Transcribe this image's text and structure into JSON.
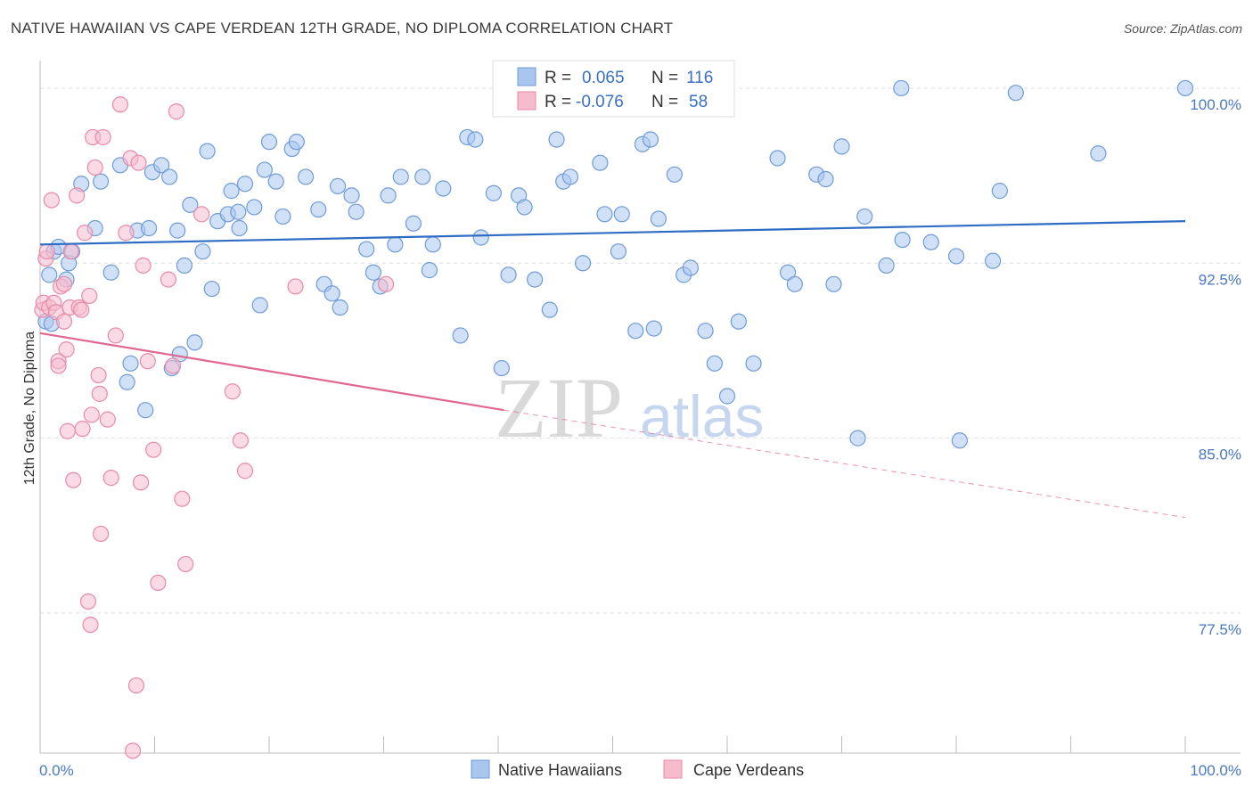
{
  "header": {
    "title": "NATIVE HAWAIIAN VS CAPE VERDEAN 12TH GRADE, NO DIPLOMA CORRELATION CHART",
    "source": "Source: ZipAtlas.com"
  },
  "watermark": {
    "zip": "ZIP",
    "atlas": "atlas"
  },
  "stats_box": {
    "rows": [
      {
        "r_label": "R =",
        "r_value": "0.065",
        "n_label": "N =",
        "n_value": "116"
      },
      {
        "r_label": "R =",
        "r_value": "-0.076",
        "n_label": "N =",
        "n_value": "58"
      }
    ]
  },
  "legend": {
    "items": [
      "Native Hawaiians",
      "Cape Verdeans"
    ]
  },
  "colors": {
    "blue_fill": "#a9c6ee",
    "blue_stroke": "#6f9bd8",
    "blue_line": "#2f6cc4",
    "pink_fill": "#f6bccd",
    "pink_stroke": "#e98aa8",
    "pink_line": "#e06890",
    "tick_text": "#4a78c2",
    "grid": "#dddddd"
  },
  "chart_data": {
    "type": "scatter",
    "title": "NATIVE HAWAIIAN VS CAPE VERDEAN 12TH GRADE, NO DIPLOMA CORRELATION CHART",
    "xlabel": "",
    "ylabel": "12th Grade, No Diploma",
    "xlim": [
      0,
      100
    ],
    "ylim": [
      71.5,
      100.8
    ],
    "x_tick_labels": [
      "0.0%",
      "100.0%"
    ],
    "y_ticks": [
      100.0,
      92.5,
      85.0,
      77.5
    ],
    "y_tick_labels": [
      "100.0%",
      "92.5%",
      "85.0%",
      "77.5%"
    ],
    "grid": true,
    "series": [
      {
        "name": "Native Hawaiians",
        "trend": {
          "x0": 0,
          "y0": 93.3,
          "x1": 100,
          "y1": 94.3
        },
        "points": [
          [
            0.5,
            90.0
          ],
          [
            0.8,
            92.0
          ],
          [
            1.2,
            93.0
          ],
          [
            1.6,
            93.2
          ],
          [
            2.3,
            91.8
          ],
          [
            2.5,
            92.5
          ],
          [
            2.8,
            93.0
          ],
          [
            3.6,
            95.9
          ],
          [
            4.8,
            94.0
          ],
          [
            5.3,
            96.0
          ],
          [
            6.2,
            92.1
          ],
          [
            7.0,
            96.7
          ],
          [
            7.6,
            87.4
          ],
          [
            7.9,
            88.2
          ],
          [
            8.5,
            93.9
          ],
          [
            9.2,
            86.2
          ],
          [
            9.5,
            94.0
          ],
          [
            9.8,
            96.4
          ],
          [
            10.6,
            96.7
          ],
          [
            11.3,
            96.2
          ],
          [
            11.5,
            88.0
          ],
          [
            12.2,
            88.6
          ],
          [
            12.6,
            92.4
          ],
          [
            13.1,
            95.0
          ],
          [
            13.5,
            89.1
          ],
          [
            14.2,
            93.0
          ],
          [
            14.6,
            97.3
          ],
          [
            15.0,
            91.4
          ],
          [
            15.5,
            94.3
          ],
          [
            16.4,
            94.6
          ],
          [
            16.7,
            95.6
          ],
          [
            17.3,
            94.7
          ],
          [
            17.9,
            95.9
          ],
          [
            17.4,
            94.0
          ],
          [
            18.7,
            94.9
          ],
          [
            19.2,
            90.7
          ],
          [
            19.6,
            96.5
          ],
          [
            20.0,
            97.7
          ],
          [
            20.6,
            96.0
          ],
          [
            21.2,
            94.5
          ],
          [
            22.0,
            97.4
          ],
          [
            22.4,
            97.7
          ],
          [
            23.2,
            96.2
          ],
          [
            24.3,
            94.8
          ],
          [
            24.8,
            91.6
          ],
          [
            25.5,
            91.2
          ],
          [
            26.2,
            90.6
          ],
          [
            26.0,
            95.8
          ],
          [
            27.2,
            95.4
          ],
          [
            27.6,
            94.7
          ],
          [
            28.5,
            93.1
          ],
          [
            29.1,
            92.1
          ],
          [
            29.7,
            91.5
          ],
          [
            30.4,
            95.4
          ],
          [
            31.0,
            93.3
          ],
          [
            31.5,
            96.2
          ],
          [
            32.6,
            94.2
          ],
          [
            33.4,
            96.2
          ],
          [
            34.0,
            92.2
          ],
          [
            34.3,
            93.3
          ],
          [
            35.2,
            95.7
          ],
          [
            36.7,
            89.4
          ],
          [
            37.3,
            97.9
          ],
          [
            38.0,
            97.8
          ],
          [
            38.5,
            93.6
          ],
          [
            39.6,
            95.5
          ],
          [
            40.3,
            88.0
          ],
          [
            40.9,
            92.0
          ],
          [
            41.8,
            95.4
          ],
          [
            42.3,
            94.9
          ],
          [
            43.2,
            91.8
          ],
          [
            44.5,
            90.5
          ],
          [
            45.1,
            97.8
          ],
          [
            45.7,
            96.0
          ],
          [
            46.3,
            96.2
          ],
          [
            47.4,
            92.5
          ],
          [
            48.9,
            96.8
          ],
          [
            49.3,
            94.6
          ],
          [
            50.5,
            93.0
          ],
          [
            50.8,
            94.6
          ],
          [
            51.3,
            99.9
          ],
          [
            52.0,
            89.6
          ],
          [
            52.6,
            97.6
          ],
          [
            53.3,
            97.8
          ],
          [
            53.6,
            89.7
          ],
          [
            54.0,
            94.4
          ],
          [
            55.4,
            96.3
          ],
          [
            56.2,
            92.0
          ],
          [
            56.8,
            92.3
          ],
          [
            58.1,
            89.6
          ],
          [
            58.9,
            88.2
          ],
          [
            60.0,
            86.8
          ],
          [
            61.0,
            90.0
          ],
          [
            62.3,
            88.2
          ],
          [
            64.4,
            97.0
          ],
          [
            65.3,
            92.1
          ],
          [
            65.9,
            91.6
          ],
          [
            67.8,
            96.3
          ],
          [
            68.6,
            96.1
          ],
          [
            69.3,
            91.6
          ],
          [
            70.0,
            97.5
          ],
          [
            71.4,
            85.0
          ],
          [
            72.0,
            94.5
          ],
          [
            73.9,
            92.4
          ],
          [
            75.2,
            100.0
          ],
          [
            75.3,
            93.5
          ],
          [
            77.8,
            93.4
          ],
          [
            80.0,
            92.8
          ],
          [
            80.3,
            84.9
          ],
          [
            83.2,
            92.6
          ],
          [
            83.8,
            95.6
          ],
          [
            85.2,
            99.8
          ],
          [
            92.4,
            97.2
          ],
          [
            100.0,
            100.0
          ],
          [
            1.0,
            89.9
          ],
          [
            12.0,
            93.9
          ]
        ]
      },
      {
        "name": "Cape Verdeans",
        "trend": {
          "x0": 0,
          "y0": 89.5,
          "x1": 40.5,
          "y1": 86.2,
          "dash_x1": 100,
          "dash_y1": 81.6
        },
        "points": [
          [
            0.2,
            90.5
          ],
          [
            0.3,
            90.8
          ],
          [
            0.5,
            92.7
          ],
          [
            0.6,
            93.0
          ],
          [
            0.8,
            90.6
          ],
          [
            1.0,
            95.2
          ],
          [
            1.2,
            90.8
          ],
          [
            1.4,
            90.4
          ],
          [
            1.6,
            88.3
          ],
          [
            1.6,
            88.1
          ],
          [
            1.8,
            91.5
          ],
          [
            2.1,
            90.0
          ],
          [
            2.1,
            91.6
          ],
          [
            2.3,
            88.8
          ],
          [
            2.4,
            85.3
          ],
          [
            2.6,
            90.6
          ],
          [
            2.7,
            93.0
          ],
          [
            2.9,
            83.2
          ],
          [
            3.2,
            95.4
          ],
          [
            3.4,
            90.6
          ],
          [
            3.6,
            90.5
          ],
          [
            3.7,
            85.4
          ],
          [
            3.9,
            93.8
          ],
          [
            4.2,
            78.0
          ],
          [
            4.3,
            91.1
          ],
          [
            4.4,
            77.0
          ],
          [
            4.5,
            86.0
          ],
          [
            4.6,
            97.9
          ],
          [
            4.8,
            96.6
          ],
          [
            5.1,
            87.7
          ],
          [
            5.2,
            86.9
          ],
          [
            5.3,
            80.9
          ],
          [
            5.5,
            97.9
          ],
          [
            5.9,
            85.8
          ],
          [
            6.2,
            83.3
          ],
          [
            6.6,
            89.4
          ],
          [
            7.0,
            99.3
          ],
          [
            7.5,
            93.8
          ],
          [
            7.9,
            97.0
          ],
          [
            8.1,
            71.6
          ],
          [
            8.4,
            74.4
          ],
          [
            8.6,
            96.8
          ],
          [
            8.8,
            83.1
          ],
          [
            9.0,
            92.4
          ],
          [
            9.4,
            88.3
          ],
          [
            9.9,
            84.5
          ],
          [
            10.3,
            78.8
          ],
          [
            11.2,
            91.8
          ],
          [
            11.6,
            88.1
          ],
          [
            11.9,
            99.0
          ],
          [
            12.4,
            82.4
          ],
          [
            12.7,
            79.6
          ],
          [
            14.1,
            94.6
          ],
          [
            16.8,
            87.0
          ],
          [
            17.5,
            84.9
          ],
          [
            17.9,
            83.6
          ],
          [
            22.3,
            91.5
          ],
          [
            30.2,
            91.6
          ]
        ]
      }
    ]
  }
}
